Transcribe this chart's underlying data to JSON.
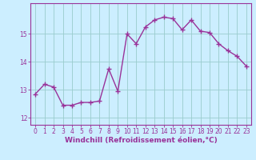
{
  "x": [
    0,
    1,
    2,
    3,
    4,
    5,
    6,
    7,
    8,
    9,
    10,
    11,
    12,
    13,
    14,
    15,
    16,
    17,
    18,
    19,
    20,
    21,
    22,
    23
  ],
  "y": [
    12.85,
    13.2,
    13.1,
    12.45,
    12.45,
    12.55,
    12.55,
    12.6,
    13.75,
    12.95,
    15.0,
    14.65,
    15.25,
    15.5,
    15.6,
    15.55,
    15.15,
    15.5,
    15.1,
    15.05,
    14.65,
    14.4,
    14.2,
    13.85
  ],
  "line_color": "#993399",
  "marker": "+",
  "markersize": 4,
  "linewidth": 1.0,
  "bg_color": "#cceeff",
  "grid_color": "#99cccc",
  "xlabel": "Windchill (Refroidissement éolien,°C)",
  "xlabel_fontsize": 6.5,
  "xlim": [
    -0.5,
    23.5
  ],
  "ylim": [
    11.75,
    16.1
  ],
  "yticks": [
    12,
    13,
    14,
    15
  ],
  "xticks": [
    0,
    1,
    2,
    3,
    4,
    5,
    6,
    7,
    8,
    9,
    10,
    11,
    12,
    13,
    14,
    15,
    16,
    17,
    18,
    19,
    20,
    21,
    22,
    23
  ],
  "tick_fontsize": 5.5,
  "tick_color": "#993399",
  "axis_color": "#993399",
  "spine_color": "#993399"
}
